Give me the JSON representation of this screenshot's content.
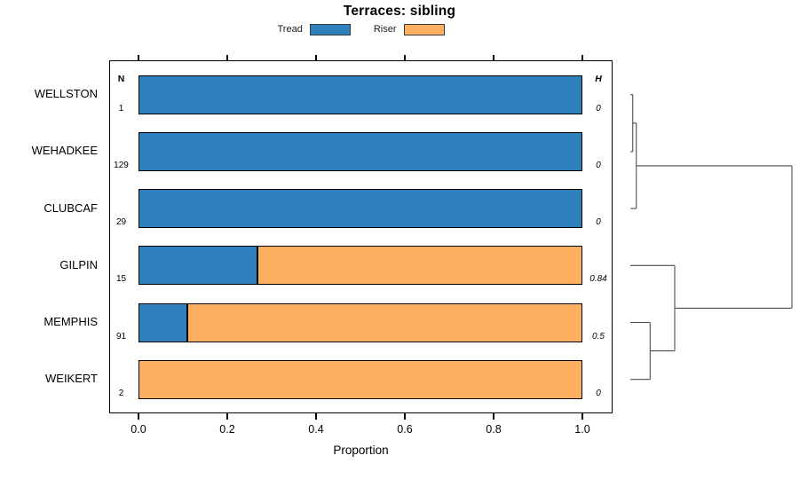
{
  "figure": {
    "title": "Terraces: sibling"
  },
  "legend": {
    "items": [
      {
        "label": "Tread",
        "color": "#2e81bc"
      },
      {
        "label": "Riser",
        "color": "#fcae61"
      }
    ]
  },
  "columns": {
    "n_header": "N",
    "h_header": "H"
  },
  "x_axis": {
    "label": "Proportion"
  },
  "chart_data": {
    "type": "bar",
    "orientation": "horizontal_stacked",
    "title": "Terraces: sibling",
    "xlabel": "Proportion",
    "xlim": [
      0,
      1
    ],
    "x_ticks": [
      "0.0",
      "0.2",
      "0.4",
      "0.6",
      "0.8",
      "1.0"
    ],
    "grid": false,
    "legend_position": "top",
    "categories": [
      "WELLSTON",
      "WEHADKEE",
      "CLUBCAF",
      "GILPIN",
      "MEMPHIS",
      "WEIKERT"
    ],
    "n_values": [
      1,
      129,
      29,
      15,
      91,
      2
    ],
    "h_values": [
      "0",
      "0",
      "0",
      "0.84",
      "0.5",
      "0"
    ],
    "series": [
      {
        "name": "Tread",
        "color": "#2e81bc",
        "values": [
          1.0,
          1.0,
          1.0,
          0.267,
          0.11,
          0.0
        ]
      },
      {
        "name": "Riser",
        "color": "#fcae61",
        "values": [
          0.0,
          0.0,
          0.0,
          0.733,
          0.89,
          1.0
        ]
      }
    ],
    "dendrogram": {
      "position": "right",
      "merges": [
        {
          "a": 0,
          "b": 1,
          "h": 0.015
        },
        {
          "a": "m0",
          "b": 2,
          "h": 0.037
        },
        {
          "a": 4,
          "b": 5,
          "h": 0.1225
        },
        {
          "a": 3,
          "b": "m2",
          "h": 0.2747
        },
        {
          "a": "m1",
          "b": "m3",
          "h": 1.0
        }
      ]
    }
  }
}
